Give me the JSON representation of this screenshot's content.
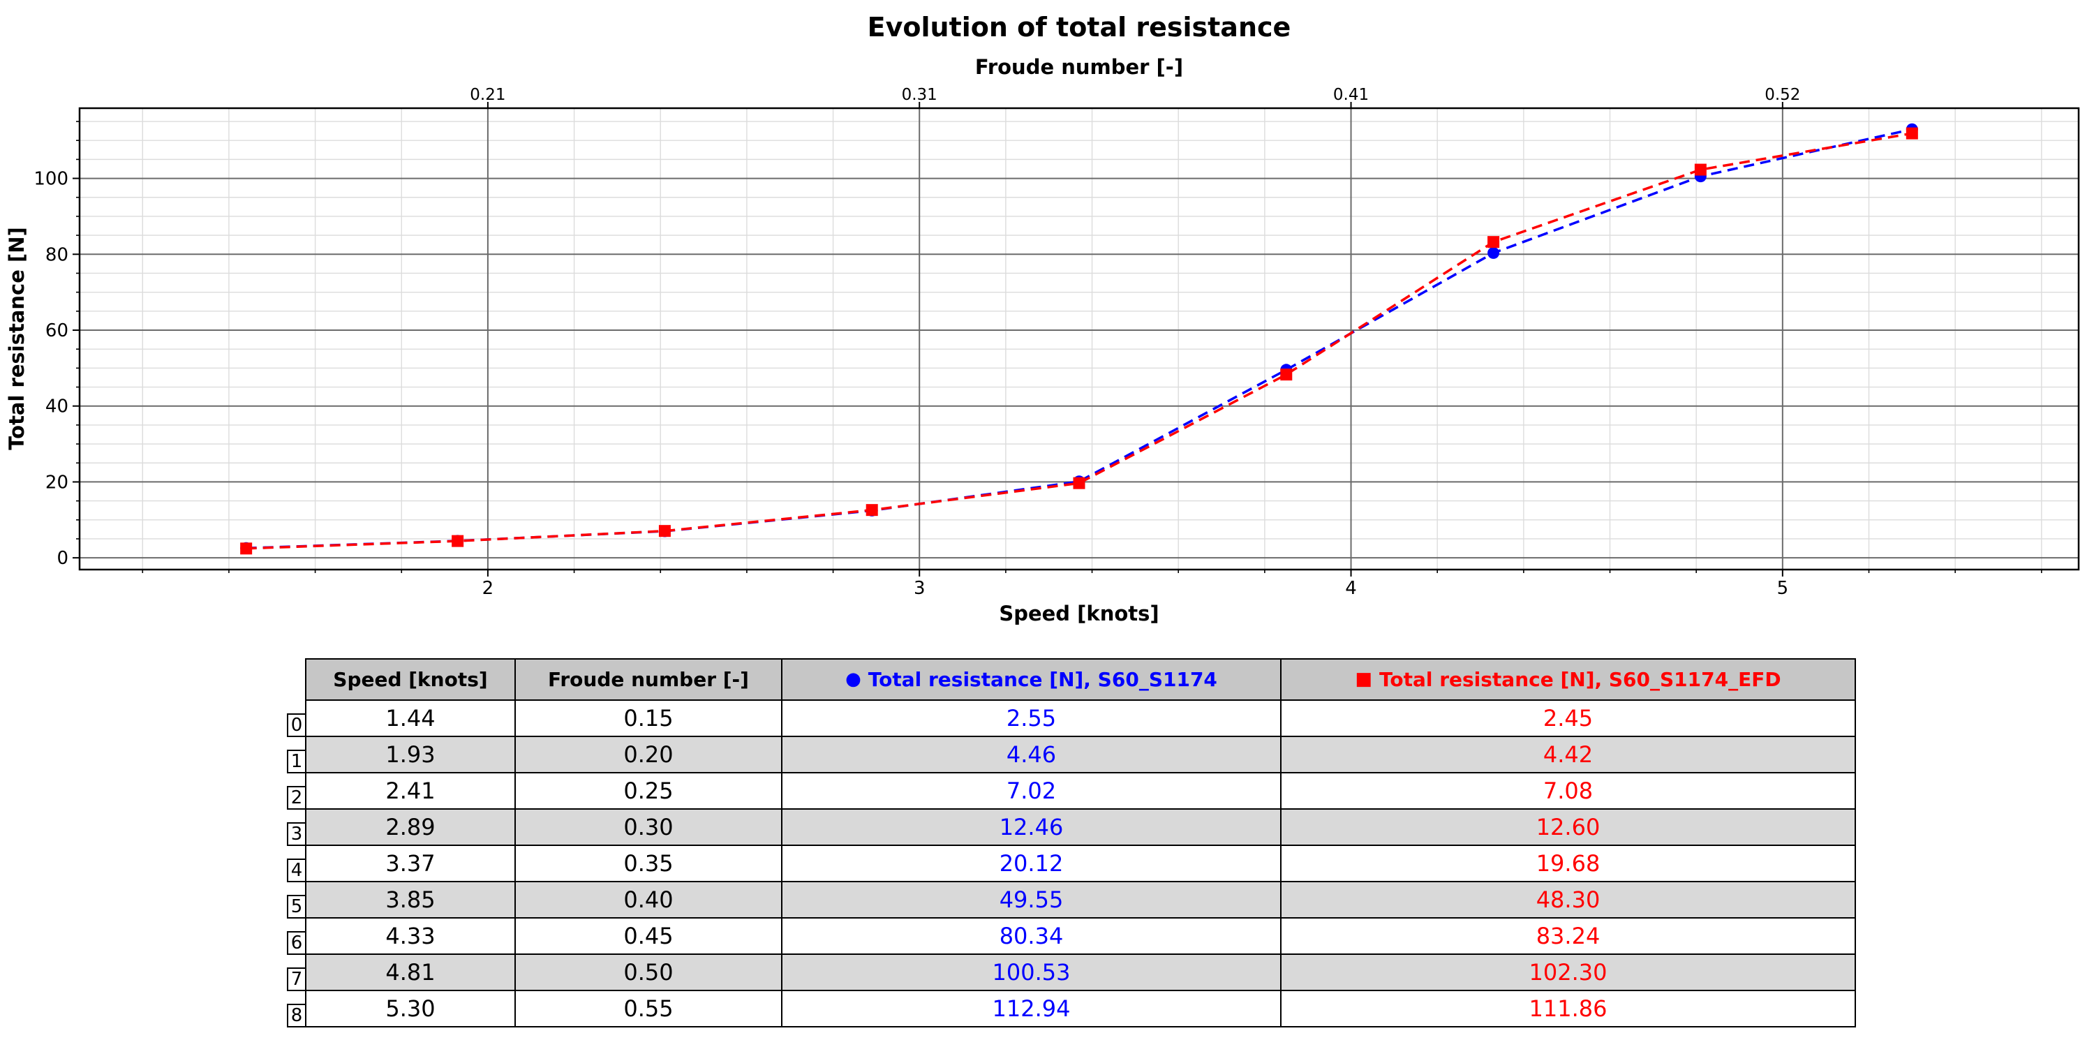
{
  "figure": {
    "background": "#ffffff"
  },
  "chart_data": {
    "type": "line",
    "title": "Evolution of total resistance",
    "xlabel": "Speed [knots]",
    "ylabel": "Total resistance [N]",
    "x2label": "Froude number [-]",
    "x": [
      1.44,
      1.93,
      2.41,
      2.89,
      3.37,
      3.85,
      4.33,
      4.81,
      5.3
    ],
    "froude": [
      0.15,
      0.2,
      0.25,
      0.3,
      0.35,
      0.4,
      0.45,
      0.5,
      0.55
    ],
    "series": [
      {
        "name": "S60_S1174",
        "color": "#0000ff",
        "marker": "circle",
        "linestyle": "dashed",
        "values": [
          2.55,
          4.46,
          7.02,
          12.46,
          20.12,
          49.55,
          80.34,
          100.53,
          112.94
        ]
      },
      {
        "name": "S60_S1174_EFD",
        "color": "#ff0000",
        "marker": "square",
        "linestyle": "dashed",
        "values": [
          2.45,
          4.42,
          7.08,
          12.6,
          19.68,
          48.3,
          83.24,
          102.3,
          111.86
        ]
      }
    ],
    "xlim": [
      1.054,
      5.686
    ],
    "ylim": [
      -3.1,
      118.5
    ],
    "x_major_ticks": [
      2,
      3,
      4,
      5
    ],
    "x_tick_labels": [
      "2",
      "3",
      "4",
      "5"
    ],
    "x_minor_step": 0.2,
    "y_major_ticks": [
      0,
      20,
      40,
      60,
      80,
      100
    ],
    "y_tick_labels": [
      "0",
      "20",
      "40",
      "60",
      "80",
      "100"
    ],
    "y_minor_step": 5,
    "top_ticks": [
      {
        "x": 2,
        "label": "0.21"
      },
      {
        "x": 3,
        "label": "0.31"
      },
      {
        "x": 4,
        "label": "0.41"
      },
      {
        "x": 5,
        "label": "0.52"
      }
    ],
    "grid": true,
    "legend_position": "none"
  },
  "table": {
    "row_labels": [
      "0",
      "1",
      "2",
      "3",
      "4",
      "5",
      "6",
      "7",
      "8"
    ],
    "headers": [
      {
        "label": "Speed [knots]",
        "color": "#000000",
        "marker": "none"
      },
      {
        "label": "Froude number [-]",
        "color": "#000000",
        "marker": "none"
      },
      {
        "label": "Total resistance [N], S60_S1174",
        "color": "#0000ff",
        "marker": "circle"
      },
      {
        "label": "Total resistance [N], S60_S1174_EFD",
        "color": "#ff0000",
        "marker": "square"
      }
    ],
    "rows": [
      [
        "1.44",
        "0.15",
        "2.55",
        "2.45"
      ],
      [
        "1.93",
        "0.20",
        "4.46",
        "4.42"
      ],
      [
        "2.41",
        "0.25",
        "7.02",
        "7.08"
      ],
      [
        "2.89",
        "0.30",
        "12.46",
        "12.60"
      ],
      [
        "3.37",
        "0.35",
        "20.12",
        "19.68"
      ],
      [
        "3.85",
        "0.40",
        "49.55",
        "48.30"
      ],
      [
        "4.33",
        "0.45",
        "80.34",
        "83.24"
      ],
      [
        "4.81",
        "0.50",
        "100.53",
        "102.30"
      ],
      [
        "5.30",
        "0.55",
        "112.94",
        "111.86"
      ]
    ]
  },
  "colors": {
    "series_blue": "#0000ff",
    "series_red": "#ff0000",
    "header_bg": "#c6c6c6",
    "row_alt_bg": "#d9d9d9",
    "row_bg": "#ffffff",
    "grid_major": "#6b6b6b",
    "grid_minor": "#dcdcdc",
    "spine": "#000000",
    "text": "#000000"
  }
}
